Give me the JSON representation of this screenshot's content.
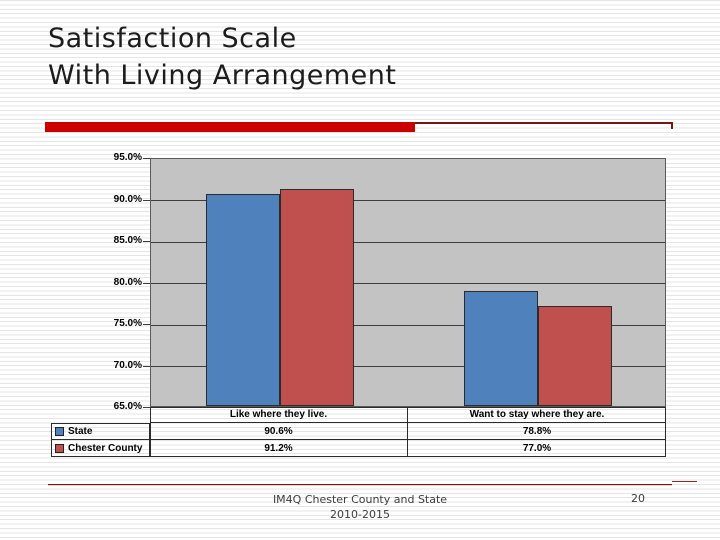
{
  "slide": {
    "title_line1": "Satisfaction Scale",
    "title_line2": "With Living Arrangement",
    "accent_bar_color": "#cc0000",
    "footer": {
      "line1": "IM4Q Chester County and State",
      "line2": "2010-2015",
      "page_number": "20"
    }
  },
  "chart_data": {
    "type": "bar",
    "title": "",
    "xlabel": "",
    "ylabel": "",
    "categories": [
      "Like where they live.",
      "Want to stay where they are."
    ],
    "series": [
      {
        "name": "State",
        "color": "#4f81bd",
        "values": [
          90.6,
          78.8
        ],
        "labels": [
          "90.6%",
          "78.8%"
        ]
      },
      {
        "name": "Chester County",
        "color": "#c0504d",
        "values": [
          91.2,
          77.0
        ],
        "labels": [
          "91.2%",
          "77.0%"
        ]
      }
    ],
    "ylim": [
      65,
      95
    ],
    "ytick_step": 5,
    "ytick_labels": [
      "95.0%",
      "90.0%",
      "85.0%",
      "80.0%",
      "75.0%",
      "70.0%",
      "65.0%"
    ],
    "grid": true,
    "plot_bg": "#c3c3c3",
    "legend_position": "data-table-left",
    "data_table": true
  }
}
